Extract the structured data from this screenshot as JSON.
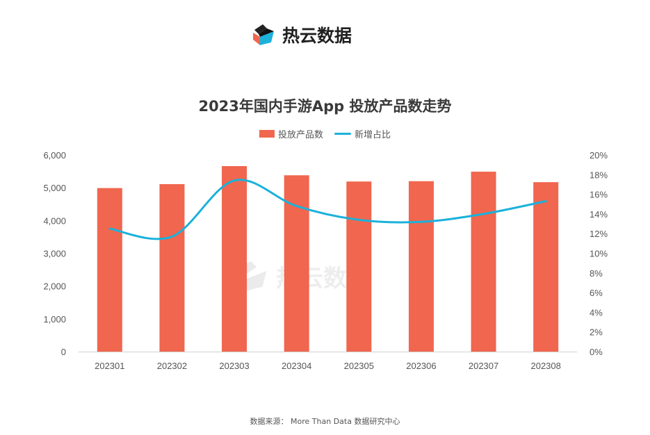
{
  "brand": {
    "name": "热云数据",
    "logo_icon": "cube-logo-icon"
  },
  "watermark": {
    "text": "热云数据"
  },
  "source": "数据来源： More Than Data 数据研究中心",
  "colors": {
    "bar": "#f0664e",
    "line": "#1ab1db"
  },
  "chart_data": {
    "type": "bar",
    "title": "2023年国内手游App 投放产品数走势",
    "legend": [
      "投放产品数",
      "新增占比"
    ],
    "legend_position": "top-center",
    "categories": [
      "202301",
      "202302",
      "202303",
      "202304",
      "202305",
      "202306",
      "202307",
      "202308"
    ],
    "series": [
      {
        "name": "投放产品数",
        "type": "bar",
        "axis": "left",
        "values": [
          4990,
          5110,
          5660,
          5380,
          5190,
          5200,
          5490,
          5170
        ]
      },
      {
        "name": "新增占比",
        "type": "line",
        "axis": "right",
        "smooth": true,
        "values": [
          12.5,
          11.7,
          17.4,
          14.8,
          13.4,
          13.2,
          14.0,
          15.3
        ]
      }
    ],
    "y_left": {
      "min": 0,
      "max": 6000,
      "step": 1000,
      "tick_labels": [
        "0",
        "1,000",
        "2,000",
        "3,000",
        "4,000",
        "5,000",
        "6,000"
      ]
    },
    "y_right": {
      "min": 0,
      "max": 20,
      "step": 2,
      "tick_labels": [
        "0%",
        "2%",
        "4%",
        "6%",
        "8%",
        "10%",
        "12%",
        "14%",
        "16%",
        "18%",
        "20%"
      ]
    },
    "grid": false
  }
}
